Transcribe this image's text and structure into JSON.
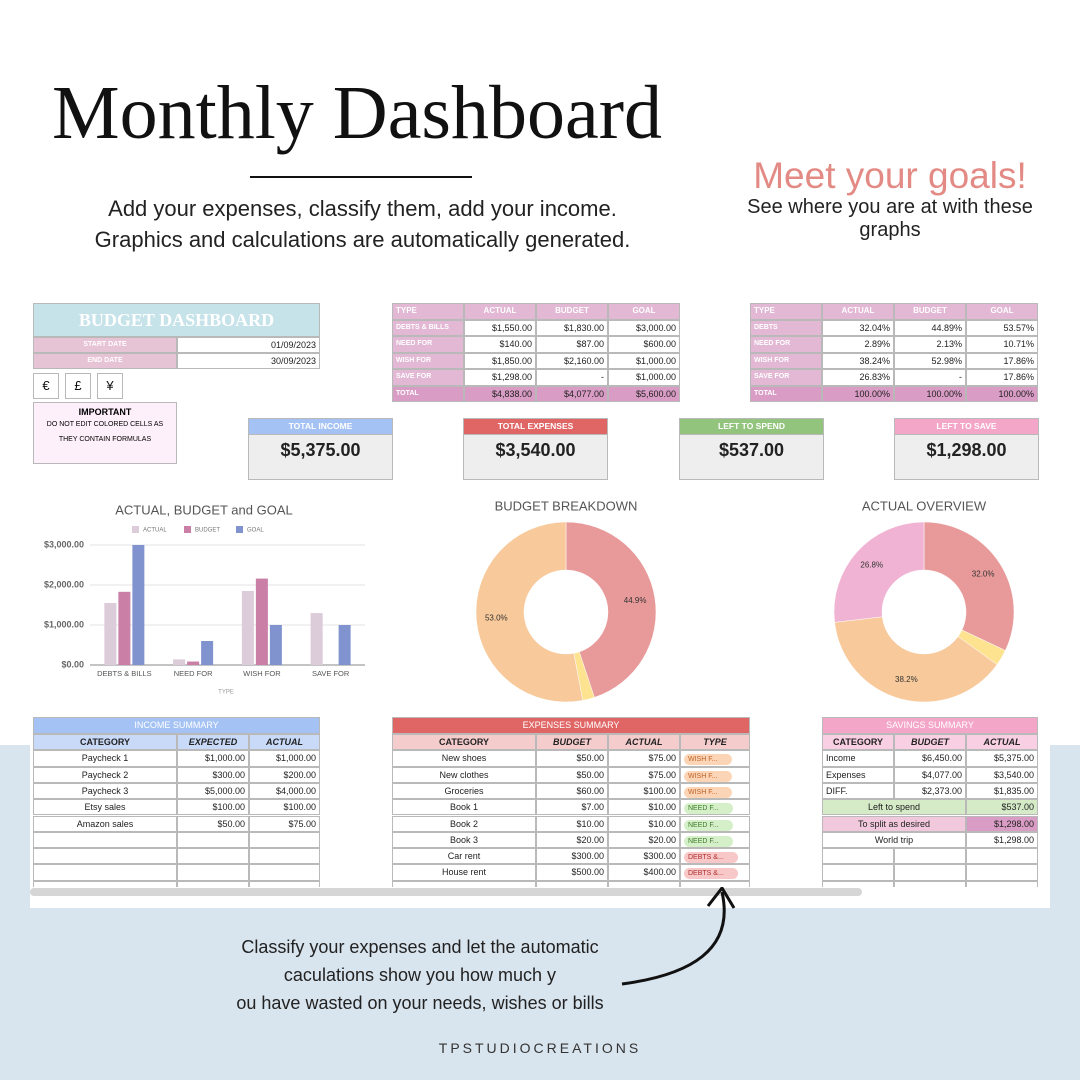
{
  "header": {
    "title": "Monthly Dashboard",
    "intro": "Add your expenses, classify them, add your income. Graphics and calculations are automatically generated.",
    "goals_title": "Meet your goals!",
    "goals_text": "See where you are at with these graphs"
  },
  "budget_box": {
    "title": "BUDGET DASHBOARD",
    "rows": [
      [
        "START DATE",
        "01/09/2023"
      ],
      [
        "END DATE",
        "30/09/2023"
      ]
    ],
    "currencies": [
      "€",
      "£",
      "¥"
    ],
    "important_title": "IMPORTANT",
    "important_text": "DO NOT EDIT COLORED CELLS AS THEY CONTAIN FORMULAS"
  },
  "amounts_table": {
    "header": [
      "TYPE",
      "ACTUAL",
      "BUDGET",
      "GOAL"
    ],
    "rows": [
      [
        "DEBTS & BILLS",
        "$1,550.00",
        "$1,830.00",
        "$3,000.00"
      ],
      [
        "NEED FOR",
        "$140.00",
        "$87.00",
        "$600.00"
      ],
      [
        "WISH FOR",
        "$1,850.00",
        "$2,160.00",
        "$1,000.00"
      ],
      [
        "SAVE FOR",
        "$1,298.00",
        "-",
        "$1,000.00"
      ],
      [
        "TOTAL",
        "$4,838.00",
        "$4,077.00",
        "$5,600.00"
      ]
    ]
  },
  "percent_table": {
    "header": [
      "TYPE",
      "ACTUAL",
      "BUDGET",
      "GOAL"
    ],
    "rows": [
      [
        "DEBTS",
        "32.04%",
        "44.89%",
        "53.57%"
      ],
      [
        "NEED FOR",
        "2.89%",
        "2.13%",
        "10.71%"
      ],
      [
        "WISH FOR",
        "38.24%",
        "52.98%",
        "17.86%"
      ],
      [
        "SAVE FOR",
        "26.83%",
        "-",
        "17.86%"
      ],
      [
        "TOTAL",
        "100.00%",
        "100.00%",
        "100.00%"
      ]
    ]
  },
  "kpis": [
    {
      "label": "TOTAL INCOME",
      "value": "$5,375.00",
      "color": "#a4c2f4"
    },
    {
      "label": "TOTAL EXPENSES",
      "value": "$3,540.00",
      "color": "#e06666"
    },
    {
      "label": "LEFT TO SPEND",
      "value": "$537.00",
      "color": "#93c47d"
    },
    {
      "label": "LEFT TO SAVE",
      "value": "$1,298.00",
      "color": "#f4a6c8"
    }
  ],
  "bar_chart": {
    "type": "bar",
    "title": "ACTUAL, BUDGET and GOAL",
    "x_label": "TYPE",
    "categories": [
      "DEBTS & BILLS",
      "NEED FOR",
      "WISH FOR",
      "SAVE FOR"
    ],
    "series": [
      {
        "name": "ACTUAL",
        "color": "#dccbd8",
        "values": [
          1550,
          140,
          1850,
          1298
        ]
      },
      {
        "name": "BUDGET",
        "color": "#c97fa6",
        "values": [
          1830,
          87,
          2160,
          null
        ]
      },
      {
        "name": "GOAL",
        "color": "#8193cf",
        "values": [
          3000,
          600,
          1000,
          1000
        ]
      }
    ],
    "ylim": [
      0,
      3000
    ],
    "yticks": [
      {
        "value": 0,
        "label": "$0.00"
      },
      {
        "value": 1000,
        "label": "$1,000.00"
      },
      {
        "value": 2000,
        "label": "$2,000.00"
      },
      {
        "value": 3000,
        "label": "$3,000.00"
      }
    ],
    "grid": true
  },
  "donuts": [
    {
      "type": "pie",
      "title": "BUDGET BREAKDOWN",
      "colors": [
        "#e89a9a",
        "#fde28f",
        "#f8c99a"
      ],
      "values": [
        44.89,
        2.13,
        52.98
      ],
      "value_labels": [
        "44.9%",
        null,
        "53.0%"
      ]
    },
    {
      "type": "pie",
      "title": "ACTUAL OVERVIEW",
      "colors": [
        "#e89a9a",
        "#fde28f",
        "#f8c99a",
        "#f0b3d3"
      ],
      "values": [
        32.04,
        2.89,
        38.24,
        26.83
      ],
      "value_labels": [
        "32.0%",
        null,
        "38.2%",
        "26.8%"
      ]
    }
  ],
  "income_summary": {
    "title": "INCOME SUMMARY",
    "header": [
      "CATEGORY",
      "EXPECTED",
      "ACTUAL"
    ],
    "rows": [
      [
        "Paycheck 1",
        "$1,000.00",
        "$1,000.00"
      ],
      [
        "Paycheck 2",
        "$300.00",
        "$200.00"
      ],
      [
        "Paycheck 3",
        "$5,000.00",
        "$4,000.00"
      ],
      [
        "Etsy sales",
        "$100.00",
        "$100.00"
      ],
      [
        "Amazon sales",
        "$50.00",
        "$75.00"
      ]
    ]
  },
  "expenses_summary": {
    "title": "EXPENSES SUMMARY",
    "header": [
      "CATEGORY",
      "BUDGET",
      "ACTUAL",
      "TYPE"
    ],
    "rows": [
      [
        "New shoes",
        "$50.00",
        "$75.00",
        "WISH F..."
      ],
      [
        "New clothes",
        "$50.00",
        "$75.00",
        "WISH F..."
      ],
      [
        "Groceries",
        "$60.00",
        "$100.00",
        "WISH F..."
      ],
      [
        "Book 1",
        "$7.00",
        "$10.00",
        "NEED F..."
      ],
      [
        "Book 2",
        "$10.00",
        "$10.00",
        "NEED F..."
      ],
      [
        "Book 3",
        "$20.00",
        "$20.00",
        "NEED F..."
      ],
      [
        "Car rent",
        "$300.00",
        "$300.00",
        "DEBTS &..."
      ],
      [
        "House rent",
        "$500.00",
        "$400.00",
        "DEBTS &..."
      ]
    ]
  },
  "savings_summary": {
    "title": "SAVINGS SUMMARY",
    "header": [
      "CATEGORY",
      "BUDGET",
      "ACTUAL"
    ],
    "rows": [
      [
        "Income",
        "$6,450.00",
        "$5,375.00"
      ],
      [
        "Expenses",
        "$4,077.00",
        "$3,540.00"
      ],
      [
        "DIFF.",
        "$2,373.00",
        "$1,835.00"
      ]
    ],
    "extra_rows": [
      [
        "Left to spend",
        "$537.00"
      ],
      [
        "To split as desired",
        "$1,298.00"
      ],
      [
        "World trip",
        "$1,298.00"
      ]
    ]
  },
  "footer": {
    "callout": [
      "Classify your expenses and let the automatic",
      "caculations show you how much y",
      "ou have wasted on your needs, wishes or bills"
    ],
    "brand": "TPSTUDIOCREATIONS"
  }
}
